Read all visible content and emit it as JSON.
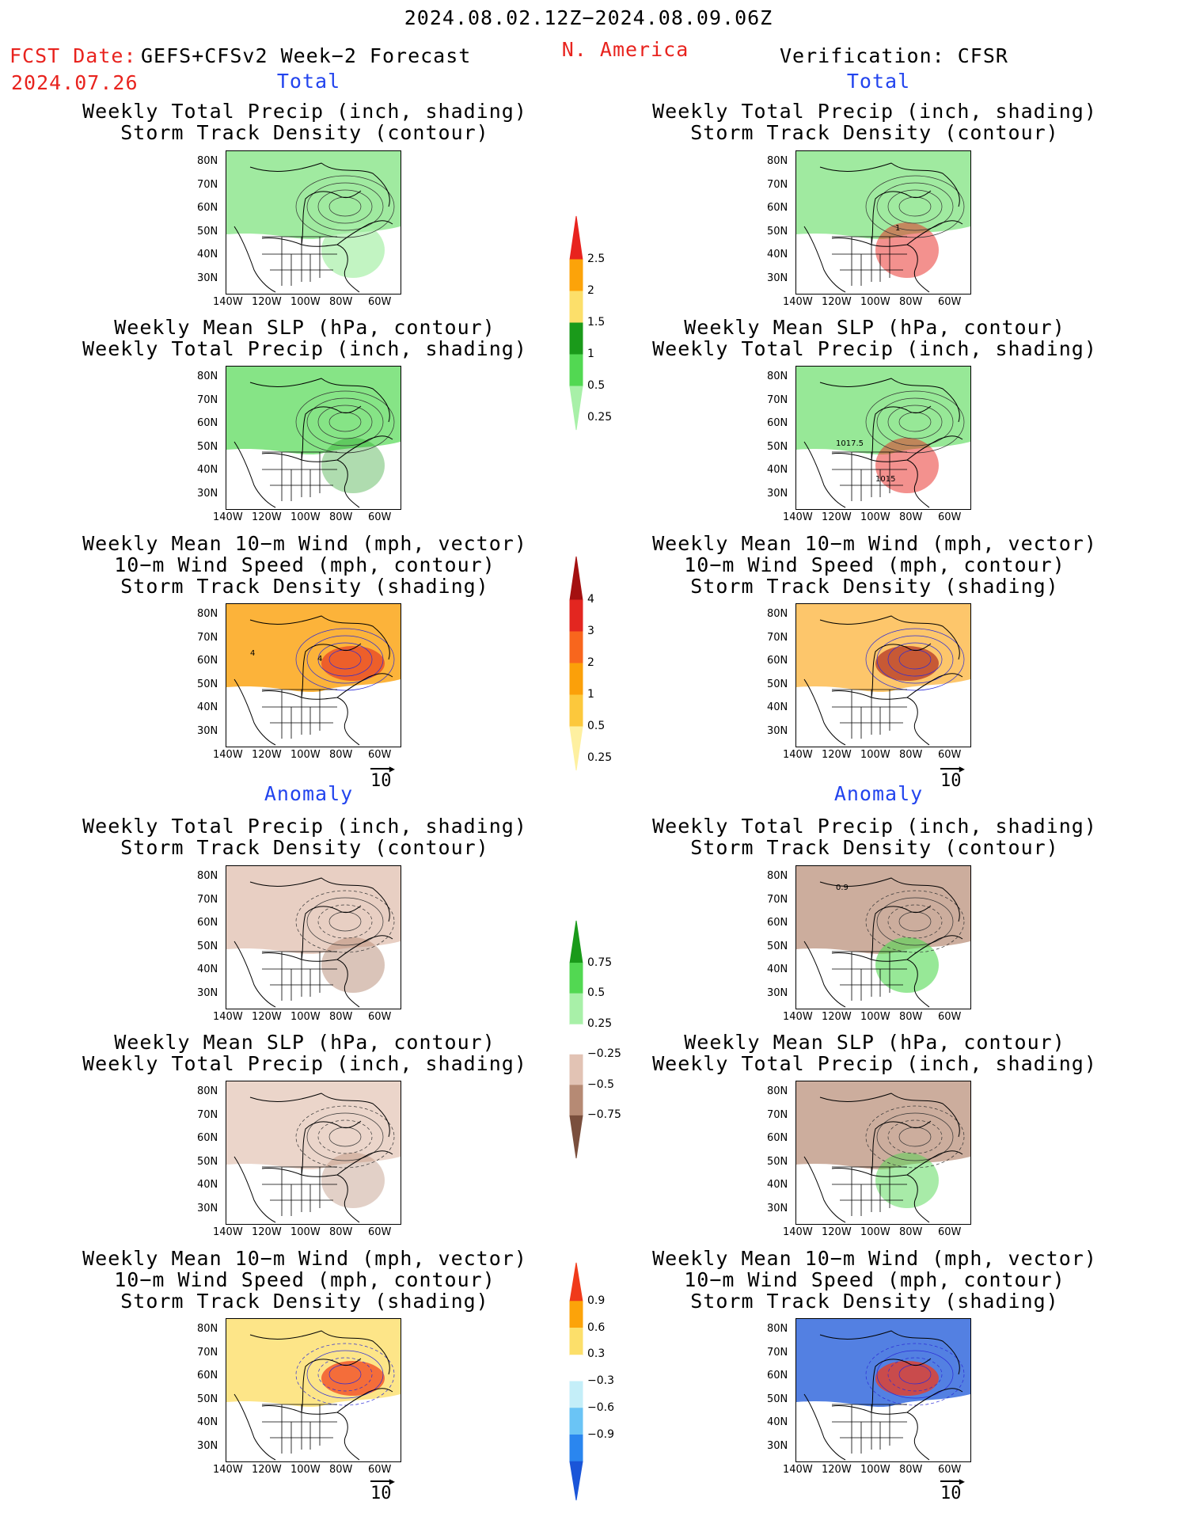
{
  "header": {
    "date_range": "2024.08.02.12Z−2024.08.09.06Z",
    "fcst_label": "FCST Date:",
    "fcst_date": "2024.07.26",
    "model": "GEFS+CFSv2 Week−2 Forecast",
    "region": "N. America",
    "verification": "Verification: CFSR"
  },
  "sections": {
    "total": "Total",
    "anomaly": "Anomaly"
  },
  "titles": {
    "precip_storm": "Weekly Total Precip (inch, shading)\nStorm Track Density (contour)",
    "slp_precip": "Weekly Mean SLP (hPa, contour)\nWeekly Total Precip (inch, shading)",
    "wind_storm": "Weekly Mean 10−m Wind (mph, vector)\n10−m Wind Speed (mph, contour)\nStorm Track Density (shading)"
  },
  "axes": {
    "lat_ticks": [
      "80N",
      "70N",
      "60N",
      "50N",
      "40N",
      "30N"
    ],
    "lon_ticks": [
      "140W",
      "120W",
      "100W",
      "80W",
      "60W"
    ]
  },
  "vector_ref": "10",
  "contour_labels": {
    "r1_right": "1",
    "r2_right_a": "1017.5",
    "r2_right_b": "1015",
    "r3_left_a": "4",
    "r3_left_b": "4",
    "r4_right": "0.9"
  },
  "colorbars": {
    "precip_total": {
      "labels": [
        "2.5",
        "2",
        "1.5",
        "1",
        "0.5",
        "0.25"
      ],
      "colors": [
        "#e8231e",
        "#fca309",
        "#fcdf6a",
        "#1a9a1a",
        "#52d852",
        "#a8f0a8"
      ]
    },
    "storm_total": {
      "labels": [
        "4",
        "3",
        "2",
        "1",
        "0.5",
        "0.25"
      ],
      "colors": [
        "#a41010",
        "#e32620",
        "#f8661d",
        "#fba009",
        "#fcc83c",
        "#fef0a0"
      ]
    },
    "precip_anom": {
      "labels": [
        "0.75",
        "0.5",
        "0.25",
        "−0.25",
        "−0.5",
        "−0.75"
      ],
      "colors": [
        "#1a9a1a",
        "#52d852",
        "#a8f0a8",
        "#ffffff",
        "#e2c3b4",
        "#b68a74",
        "#7a4f3d"
      ]
    },
    "storm_anom": {
      "labels": [
        "0.9",
        "0.6",
        "0.3",
        "−0.3",
        "−0.6",
        "−0.9"
      ],
      "colors": [
        "#f03a1a",
        "#fca309",
        "#fcdf6a",
        "#ffffff",
        "#c4eef8",
        "#6ac4f5",
        "#2a86ef",
        "#1a55d8"
      ]
    }
  }
}
